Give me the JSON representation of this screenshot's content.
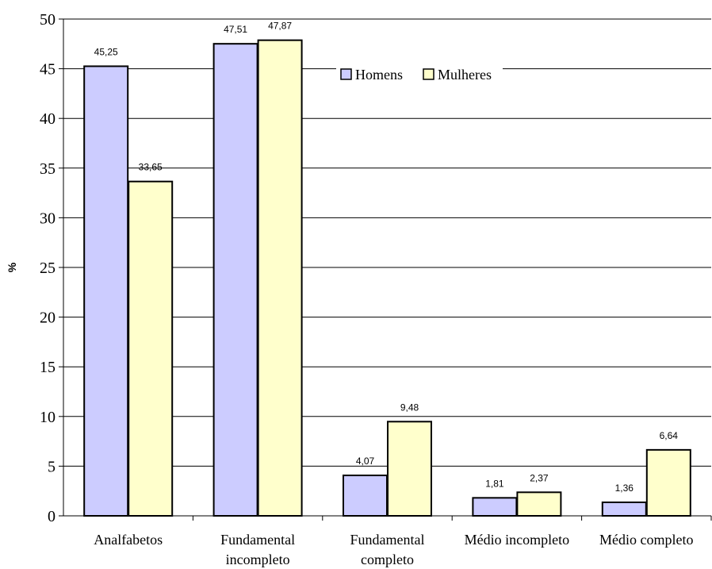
{
  "chart_data": {
    "type": "bar",
    "title": "",
    "xlabel": "",
    "ylabel": "%",
    "ylim": [
      0,
      50
    ],
    "yticks": [
      0,
      5,
      10,
      15,
      20,
      25,
      30,
      35,
      40,
      45,
      50
    ],
    "grid": true,
    "legend_position": "top-right",
    "categories": [
      [
        "Analfabetos"
      ],
      [
        "Fundamental",
        "incompleto"
      ],
      [
        "Fundamental",
        "completo"
      ],
      [
        "Médio incompleto"
      ],
      [
        "Médio completo"
      ]
    ],
    "series": [
      {
        "name": "Homens",
        "color": "#ccccff",
        "values": [
          45.25,
          47.51,
          4.07,
          1.81,
          1.36
        ],
        "labels": [
          "45,25",
          "47,51",
          "4,07",
          "1,81",
          "1,36"
        ]
      },
      {
        "name": "Mulheres",
        "color": "#ffffcc",
        "values": [
          33.65,
          47.87,
          9.48,
          2.37,
          6.64
        ],
        "labels": [
          "33,65",
          "47,87",
          "9,48",
          "2,37",
          "6,64"
        ]
      }
    ]
  }
}
